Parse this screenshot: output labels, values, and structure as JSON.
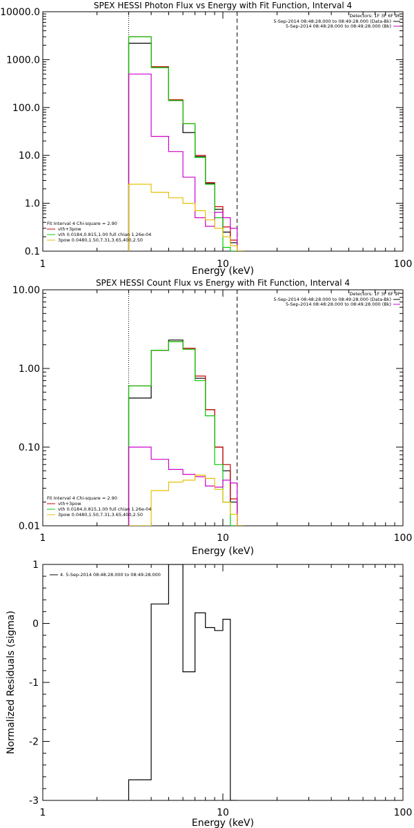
{
  "chart_data": [
    {
      "type": "line",
      "title": "SPEX HESSI Photon Flux vs Energy with Fit Function, Interval 4",
      "xlabel": "Energy (keV)",
      "ylabel": "",
      "xscale": "log",
      "yscale": "log",
      "xlim": [
        1,
        100
      ],
      "ylim": [
        0.1,
        10000
      ],
      "x_tick_labels": [
        "1",
        "10",
        "100"
      ],
      "y_tick_labels": [
        "0.1",
        "1.0",
        "10.0",
        "100.0",
        "1000.0",
        "10000.0"
      ],
      "vertical_lines": [
        {
          "x": 3.0,
          "style": "dotted"
        },
        {
          "x": 12.0,
          "style": "dashed"
        }
      ],
      "legend_right": {
        "header": "Detectors: 1F 3F 6F 9F",
        "items": [
          {
            "label": "5-Sep-2014 08:48:28.000 to 08:49:28.000 (Data-Bk)",
            "color": "#000000"
          },
          {
            "label": "5-Sep-2014 08:48:28.000 to 08:49:28.000 (Bk)",
            "color": "#cc00cc"
          }
        ]
      },
      "legend_left": {
        "header": "Fit Interval 4   Chi-square = 2.90",
        "items": [
          {
            "label": "vth+3pow",
            "color": "#cc0000"
          },
          {
            "label": "vth 0.0184,0.815,1.00  full chian 1.26e-04",
            "color": "#00cc00"
          },
          {
            "label": "3pow 0.0480,1.50,7.31,3.65,400,2.50",
            "color": "#e6c000"
          }
        ]
      },
      "x_edges": [
        3.0,
        4.0,
        5.0,
        6.0,
        7.0,
        8.0,
        9.0,
        10.0,
        11.0,
        12.0,
        13.0
      ],
      "series": [
        {
          "color": "#000000",
          "values": [
            2200,
            700,
            140,
            30,
            9.5,
            2.6,
            0.75,
            0.25,
            0.15,
            0.1
          ]
        },
        {
          "color": "#cc0000",
          "values": [
            3000,
            710,
            145,
            46,
            10,
            2.7,
            0.85,
            0.32,
            0.17,
            0.1
          ]
        },
        {
          "color": "#00cc00",
          "values": [
            3000,
            680,
            140,
            46,
            9,
            2.5,
            0.5,
            0.12,
            0.1,
            0.1
          ]
        },
        {
          "color": "#cc00cc",
          "values": [
            500,
            25,
            12,
            3.5,
            0.5,
            0.33,
            0.65,
            0.5,
            0.3,
            0.1
          ]
        },
        {
          "color": "#e6c000",
          "values": [
            2.5,
            1.7,
            1.3,
            1.0,
            0.7,
            0.45,
            0.3,
            0.2,
            0.13,
            0.1
          ]
        }
      ]
    },
    {
      "type": "line",
      "title": "SPEX HESSI Count Flux vs Energy with Fit Function, Interval 4",
      "xlabel": "Energy (keV)",
      "ylabel": "",
      "xscale": "log",
      "yscale": "log",
      "xlim": [
        1,
        100
      ],
      "ylim": [
        0.01,
        10
      ],
      "x_tick_labels": [
        "1",
        "10",
        "100"
      ],
      "y_tick_labels": [
        "0.01",
        "0.10",
        "1.00",
        "10.00"
      ],
      "vertical_lines": [
        {
          "x": 3.0,
          "style": "dotted"
        },
        {
          "x": 12.0,
          "style": "dashed"
        }
      ],
      "legend_right": {
        "header": "Detectors: 1F 3F 6F 9F",
        "items": [
          {
            "label": "5-Sep-2014 08:48:28.000 to 08:49:28.000 (Data-Bk)",
            "color": "#000000"
          },
          {
            "label": "5-Sep-2014 08:48:28.000 to 08:49:28.000 (Bk)",
            "color": "#cc00cc"
          }
        ]
      },
      "legend_left": {
        "header": "Fit Interval 4   Chi-square = 2.90",
        "items": [
          {
            "label": "vth+3pow",
            "color": "#cc0000"
          },
          {
            "label": "vth 0.0184,0.815,1.00  full chian 1.26e-04",
            "color": "#00cc00"
          },
          {
            "label": "3pow 0.0480,1.50,7.31,3.65,400,2.50",
            "color": "#e6c000"
          }
        ]
      },
      "x_edges": [
        3.0,
        4.0,
        5.0,
        6.0,
        7.0,
        8.0,
        9.0,
        10.0,
        11.0,
        12.0,
        13.0
      ],
      "series": [
        {
          "color": "#000000",
          "values": [
            0.42,
            1.7,
            2.3,
            1.8,
            0.75,
            0.3,
            0.1,
            0.05,
            0.02,
            0.01
          ]
        },
        {
          "color": "#cc0000",
          "values": [
            0.6,
            1.7,
            2.2,
            1.8,
            0.8,
            0.3,
            0.1,
            0.06,
            0.022,
            0.01
          ]
        },
        {
          "color": "#00cc00",
          "values": [
            0.6,
            1.7,
            2.2,
            1.75,
            0.7,
            0.25,
            0.06,
            0.02,
            0.01,
            0.01
          ]
        },
        {
          "color": "#cc00cc",
          "values": [
            0.1,
            0.07,
            0.052,
            0.045,
            0.042,
            0.032,
            0.031,
            0.038,
            0.035,
            0.01
          ]
        },
        {
          "color": "#e6c000",
          "values": [
            0.01,
            0.028,
            0.036,
            0.038,
            0.044,
            0.04,
            0.029,
            0.02,
            0.014,
            0.01
          ]
        }
      ]
    },
    {
      "type": "line",
      "title": "",
      "xlabel": "Energy (keV)",
      "ylabel": "Normalized Residuals (sigma)",
      "xscale": "log",
      "yscale": "linear",
      "xlim": [
        1,
        100
      ],
      "ylim": [
        -3,
        1
      ],
      "x_tick_labels": [
        "1",
        "10",
        "100"
      ],
      "y_tick_labels": [
        "-3",
        "-2",
        "-1",
        "0",
        "1"
      ],
      "legend": {
        "items": [
          {
            "label": "4.  5-Sep-2014 08:48:28.000 to 08:49:28.000",
            "color": "#000000"
          }
        ]
      },
      "x_edges": [
        3.0,
        4.0,
        5.0,
        6.0,
        7.0,
        8.0,
        9.0,
        10.0,
        11.0,
        12.0
      ],
      "series": [
        {
          "color": "#000000",
          "values": [
            -2.65,
            0.33,
            1.0,
            -0.82,
            0.18,
            -0.07,
            -0.12,
            0.07,
            -3.0
          ]
        }
      ]
    }
  ]
}
